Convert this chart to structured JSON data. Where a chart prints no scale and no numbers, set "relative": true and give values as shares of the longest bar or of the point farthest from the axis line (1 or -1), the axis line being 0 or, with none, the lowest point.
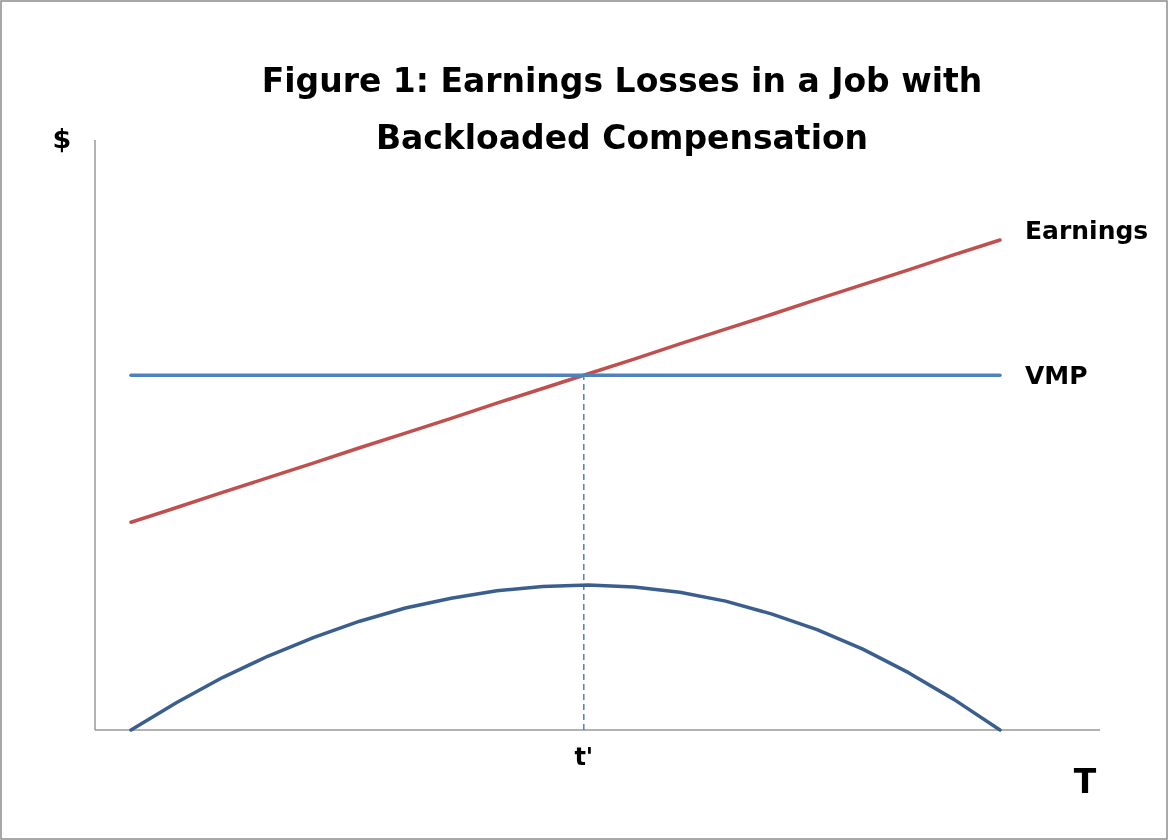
{
  "chart_data": {
    "type": "line",
    "title": "Figure 1: Earnings Losses in a Job with Backloaded Compensation",
    "xlabel": "T",
    "ylabel": "$",
    "relative": true,
    "marker": "none",
    "legend": false,
    "categories": [
      null,
      null,
      null,
      null,
      null,
      null,
      null,
      null,
      null,
      null,
      null,
      null,
      null,
      null,
      null,
      null,
      null,
      null,
      null,
      null
    ],
    "series": [
      {
        "name": "Earnings",
        "color": "#c0504d",
        "values": [
          0.424,
          0.454,
          0.485,
          0.515,
          0.545,
          0.576,
          0.606,
          0.636,
          0.667,
          0.697,
          0.727,
          0.757,
          0.788,
          0.818,
          0.848,
          0.879,
          0.909,
          0.939,
          0.97,
          1
        ]
      },
      {
        "name": "VMP",
        "color": "#4f81bd",
        "values": [
          0.724,
          0.724,
          0.724,
          0.724,
          0.724,
          0.724,
          0.724,
          0.724,
          0.724,
          0.724,
          0.724,
          0.724,
          0.724,
          0.724,
          0.724,
          0.724,
          0.724,
          0.724,
          0.724,
          0.724
        ]
      },
      {
        "color": "#3a5f8e",
        "values": [
          0,
          0.056,
          0.107,
          0.151,
          0.189,
          0.222,
          0.249,
          0.269,
          0.284,
          0.293,
          0.296,
          0.292,
          0.281,
          0.263,
          0.237,
          0.205,
          0.165,
          0.117,
          0.062,
          0
        ]
      }
    ],
    "ref_lines": [
      {
        "axis": "x",
        "label": "t'",
        "color": "#4f81bd",
        "line_style": "dashed"
      }
    ]
  }
}
